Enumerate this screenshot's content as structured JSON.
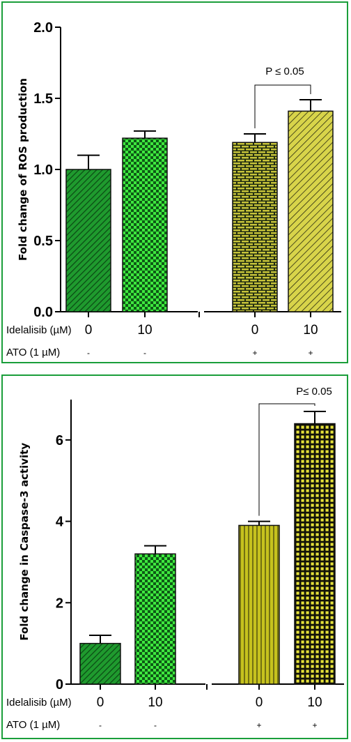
{
  "chart_data": [
    {
      "type": "bar",
      "ylabel": "Fold change of ROS production",
      "ylim": [
        0,
        2.0
      ],
      "yticks": [
        "0.0",
        "0.5",
        "1.0",
        "1.5",
        "2.0"
      ],
      "yticks_values": [
        0,
        0.5,
        1.0,
        1.5,
        2.0
      ],
      "categories": [
        "0",
        "10",
        "0",
        "10"
      ],
      "values": [
        1.0,
        1.22,
        1.19,
        1.41
      ],
      "errors": [
        0.1,
        0.05,
        0.06,
        0.08
      ],
      "bar_colors": [
        "#1c8a2a",
        "#33dd33",
        "#2e4a1a",
        "#d4d040"
      ],
      "patterns": [
        "diag-dark-green",
        "checker-green",
        "brick-olive",
        "diag-yellow"
      ],
      "row1_label": "Idelalisib (µM)",
      "row1_values": [
        "0",
        "10",
        "0",
        "10"
      ],
      "row2_label": "ATO (1 µM)",
      "row2_values": [
        "-",
        "-",
        "+",
        "+"
      ],
      "annotation": "P ≤ 0.05"
    },
    {
      "type": "bar",
      "ylabel": "Fold change in Caspase-3 activity",
      "ylim": [
        0,
        7
      ],
      "yticks": [
        "0",
        "2",
        "4",
        "6"
      ],
      "yticks_values": [
        0,
        2,
        4,
        6
      ],
      "categories": [
        "0",
        "10",
        "0",
        "10"
      ],
      "values": [
        1.0,
        3.2,
        3.9,
        6.4
      ],
      "errors": [
        0.2,
        0.2,
        0.1,
        0.3
      ],
      "bar_colors": [
        "#1c8a2a",
        "#33dd33",
        "#c8c020",
        "#e0dc30"
      ],
      "patterns": [
        "diag-dark-green",
        "checker-green",
        "vstripe-olive",
        "grid-yellow"
      ],
      "row1_label": "Idelalisib (µM)",
      "row1_values": [
        "0",
        "10",
        "0",
        "10"
      ],
      "row2_label": "ATO (1 µM)",
      "row2_values": [
        "-",
        "-",
        "+",
        "+"
      ],
      "annotation": "P≤ 0.05"
    }
  ]
}
